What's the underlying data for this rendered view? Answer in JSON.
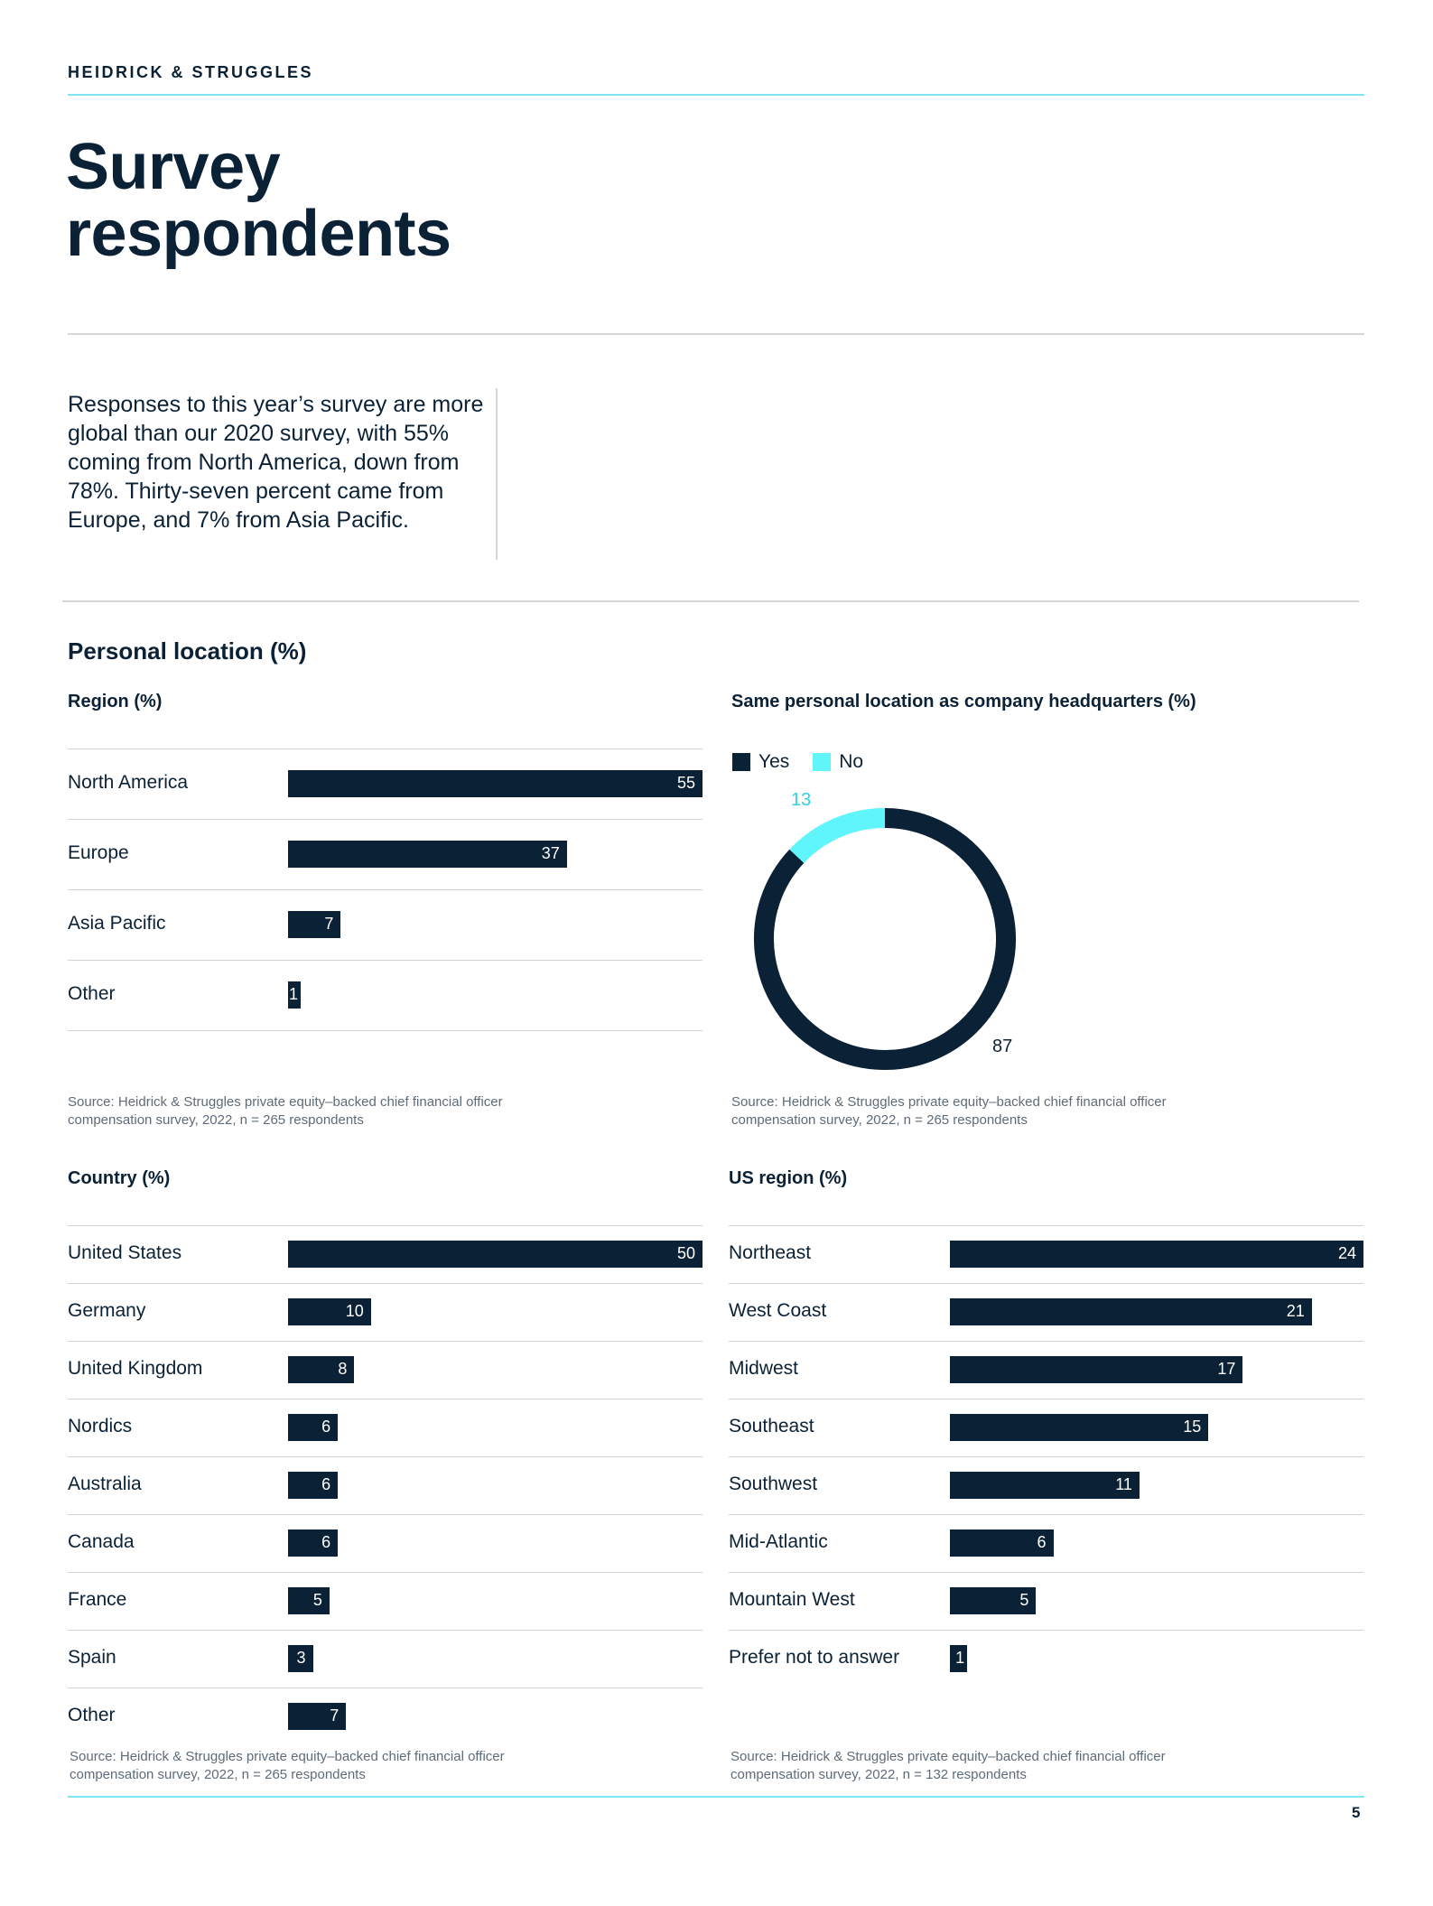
{
  "header": {
    "brand": "HEIDRICK & STRUGGLES"
  },
  "page": {
    "title_line1": "Survey",
    "title_line2": "respondents",
    "intro": "Responses to this year’s survey are more global than our 2020 survey, with 55% coming from North America, down from 78%. Thirty-seven percent came from Europe, and 7% from Asia Pacific.",
    "section_title": "Personal location (%)",
    "page_number": "5"
  },
  "colors": {
    "navy": "#0b2135",
    "cyan": "#5ff5fa",
    "rule_cyan": "#7de6ef",
    "grey_rule": "#d4d7da"
  },
  "chart_data": [
    {
      "id": "region",
      "type": "bar",
      "orientation": "horizontal",
      "title": "Region (%)",
      "categories": [
        "North America",
        "Europe",
        "Asia Pacific",
        "Other"
      ],
      "values": [
        55,
        37,
        7,
        1
      ],
      "xlim": [
        0,
        55
      ],
      "source": "Source: Heidrick & Struggles private equity–backed chief financial officer compensation survey, 2022, n = 265 respondents"
    },
    {
      "id": "hq",
      "type": "pie",
      "style": "donut",
      "title": "Same personal location as company headquarters (%)",
      "categories": [
        "Yes",
        "No"
      ],
      "values": [
        87,
        13
      ],
      "colors": [
        "#0b2135",
        "#5ff5fa"
      ],
      "source": "Source: Heidrick & Struggles private equity–backed chief financial officer compensation survey, 2022, n = 265 respondents"
    },
    {
      "id": "country",
      "type": "bar",
      "orientation": "horizontal",
      "title": "Country (%)",
      "categories": [
        "United States",
        "Germany",
        "United Kingdom",
        "Nordics",
        "Australia",
        "Canada",
        "France",
        "Spain",
        "Other"
      ],
      "values": [
        50,
        10,
        8,
        6,
        6,
        6,
        5,
        3,
        7
      ],
      "xlim": [
        0,
        50
      ],
      "source": "Source: Heidrick & Struggles private equity–backed chief financial officer compensation survey, 2022, n = 265 respondents"
    },
    {
      "id": "usregion",
      "type": "bar",
      "orientation": "horizontal",
      "title": "US region (%)",
      "categories": [
        "Northeast",
        "West Coast",
        "Midwest",
        "Southeast",
        "Southwest",
        "Mid-Atlantic",
        "Mountain West",
        "Prefer not to answer"
      ],
      "values": [
        24,
        21,
        17,
        15,
        11,
        6,
        5,
        1
      ],
      "xlim": [
        0,
        24
      ],
      "source": "Source: Heidrick & Struggles private equity–backed chief financial officer compensation survey, 2022, n = 132 respondents"
    }
  ]
}
